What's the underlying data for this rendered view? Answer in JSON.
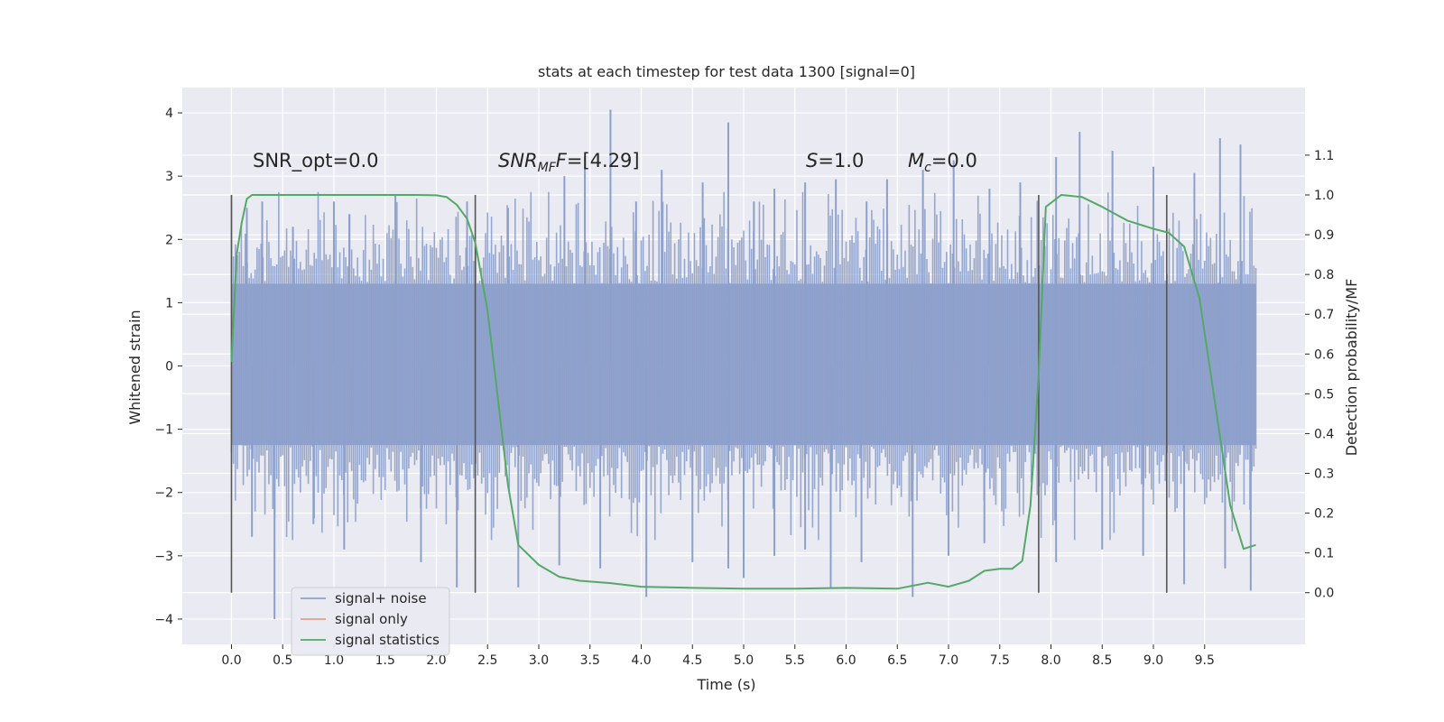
{
  "chart_data": {
    "type": "line",
    "title": "stats at each timestep for test data 1300 [signal=0]",
    "xlabel": "Time (s)",
    "ylabel": "Whitened strain",
    "y2label": "Detection probability/MF",
    "xlim": [
      -0.48,
      10.48
    ],
    "ylim": [
      -4.4,
      4.4
    ],
    "y2lim": [
      -0.13,
      1.27
    ],
    "x_ticks": [
      0.0,
      0.5,
      1.0,
      1.5,
      2.0,
      2.5,
      3.0,
      3.5,
      4.0,
      4.5,
      5.0,
      5.5,
      6.0,
      6.5,
      7.0,
      7.5,
      8.0,
      8.5,
      9.0,
      9.5
    ],
    "x_tick_labels": [
      "0.0",
      "0.5",
      "1.0",
      "1.5",
      "2.0",
      "2.5",
      "3.0",
      "3.5",
      "4.0",
      "4.5",
      "5.0",
      "5.5",
      "6.0",
      "6.5",
      "7.0",
      "7.5",
      "8.0",
      "8.5",
      "9.0",
      "9.5"
    ],
    "y_ticks": [
      4,
      3,
      2,
      1,
      0,
      -1,
      -2,
      -3,
      -4
    ],
    "y_tick_labels": [
      "4",
      "3",
      "2",
      "1",
      "0",
      "−1",
      "−2",
      "−3",
      "−4"
    ],
    "y2_ticks": [
      1.1,
      1.0,
      0.9,
      0.8,
      0.7,
      0.6,
      0.5,
      0.4,
      0.3,
      0.2,
      0.1,
      0.0
    ],
    "y2_tick_labels": [
      "1.1",
      "1.0",
      "0.9",
      "0.8",
      "0.7",
      "0.6",
      "0.5",
      "0.4",
      "0.3",
      "0.2",
      "0.1",
      "0.0"
    ],
    "grid": true,
    "legend_position": "lower-left",
    "colors": {
      "signal_noise": "#8da0cb",
      "signal_only": "#e8a07f",
      "signal_statistics": "#55a868",
      "vlines": "#555555",
      "background": "#eaeaf2",
      "grid": "#ffffff"
    },
    "series": [
      {
        "name": "signal+ noise",
        "kind": "noise-band",
        "x_range": [
          0.0,
          10.0
        ],
        "dense_band": [
          -1.25,
          1.3
        ],
        "typical_extent": [
          -2.7,
          2.7
        ],
        "peaks_high": [
          [
            0.15,
            2.5
          ],
          [
            0.3,
            2.6
          ],
          [
            0.6,
            2.2
          ],
          [
            1.0,
            2.6
          ],
          [
            1.15,
            2.4
          ],
          [
            1.6,
            2.7
          ],
          [
            2.3,
            2.6
          ],
          [
            2.7,
            2.5
          ],
          [
            3.25,
            3.0
          ],
          [
            3.45,
            3.3
          ],
          [
            3.7,
            4.05
          ],
          [
            3.95,
            2.6
          ],
          [
            4.2,
            3.1
          ],
          [
            4.6,
            2.9
          ],
          [
            4.85,
            3.85
          ],
          [
            5.1,
            2.6
          ],
          [
            5.3,
            2.8
          ],
          [
            5.6,
            2.9
          ],
          [
            5.9,
            2.95
          ],
          [
            6.2,
            2.6
          ],
          [
            6.4,
            2.95
          ],
          [
            6.75,
            3.1
          ],
          [
            7.05,
            3.25
          ],
          [
            7.4,
            2.8
          ],
          [
            7.7,
            2.9
          ],
          [
            8.05,
            3.3
          ],
          [
            8.28,
            3.7
          ],
          [
            8.6,
            3.4
          ],
          [
            9.0,
            3.15
          ],
          [
            9.4,
            3.05
          ],
          [
            9.65,
            3.6
          ],
          [
            9.85,
            3.5
          ]
        ],
        "peaks_low": [
          [
            0.42,
            -4.0
          ],
          [
            0.2,
            -2.7
          ],
          [
            0.8,
            -2.5
          ],
          [
            1.1,
            -2.9
          ],
          [
            1.85,
            -3.1
          ],
          [
            2.2,
            -3.5
          ],
          [
            2.8,
            -3.5
          ],
          [
            3.2,
            -3.15
          ],
          [
            3.6,
            -3.2
          ],
          [
            4.05,
            -3.65
          ],
          [
            4.5,
            -3.1
          ],
          [
            4.85,
            -3.2
          ],
          [
            5.0,
            -3.35
          ],
          [
            5.3,
            -3.0
          ],
          [
            5.6,
            -2.9
          ],
          [
            5.85,
            -3.5
          ],
          [
            6.15,
            -3.1
          ],
          [
            6.65,
            -3.65
          ],
          [
            7.0,
            -3.0
          ],
          [
            7.35,
            -2.8
          ],
          [
            8.05,
            -3.1
          ],
          [
            8.5,
            -2.9
          ],
          [
            8.9,
            -3.0
          ],
          [
            9.3,
            -3.45
          ],
          [
            9.7,
            -3.2
          ],
          [
            9.95,
            -3.55
          ]
        ]
      },
      {
        "name": "signal only",
        "kind": "line",
        "x": [],
        "y": []
      },
      {
        "name": "signal statistics",
        "kind": "line",
        "axis": "right",
        "x": [
          0.0,
          0.05,
          0.1,
          0.15,
          0.2,
          0.4,
          1.0,
          1.5,
          1.8,
          2.0,
          2.1,
          2.2,
          2.3,
          2.38,
          2.5,
          2.6,
          2.7,
          2.8,
          3.0,
          3.2,
          3.4,
          3.7,
          4.0,
          4.5,
          5.0,
          5.5,
          6.0,
          6.5,
          6.8,
          7.0,
          7.2,
          7.35,
          7.5,
          7.62,
          7.72,
          7.8,
          7.88,
          7.95,
          8.1,
          8.3,
          8.5,
          8.75,
          9.0,
          9.15,
          9.3,
          9.45,
          9.6,
          9.75,
          9.88,
          10.0
        ],
        "y": [
          0.58,
          0.85,
          0.93,
          0.99,
          1.0,
          1.0,
          1.0,
          1.0,
          1.0,
          0.999,
          0.995,
          0.975,
          0.94,
          0.88,
          0.71,
          0.49,
          0.27,
          0.12,
          0.07,
          0.04,
          0.03,
          0.024,
          0.015,
          0.012,
          0.01,
          0.01,
          0.012,
          0.01,
          0.025,
          0.015,
          0.03,
          0.055,
          0.06,
          0.06,
          0.08,
          0.22,
          0.55,
          0.97,
          1.0,
          0.995,
          0.97,
          0.935,
          0.915,
          0.905,
          0.87,
          0.74,
          0.48,
          0.22,
          0.11,
          0.12
        ]
      }
    ],
    "vlines_x": [
      0.0,
      2.38,
      7.88,
      9.13
    ],
    "annotations": [
      {
        "text": "SNR_opt=0.0",
        "x": 0.2
      },
      {
        "text": "SNR",
        "sub": "MF",
        "text_after_sub": "=[4.29]",
        "italic_main": true,
        "x": 2.6
      },
      {
        "text": "S",
        "text_after": "=1.0",
        "italic_main": true,
        "x": 5.6
      },
      {
        "text": "M",
        "sub": "c",
        "text_after_sub": "=0.0",
        "italic_main": true,
        "x": 6.6
      }
    ]
  }
}
